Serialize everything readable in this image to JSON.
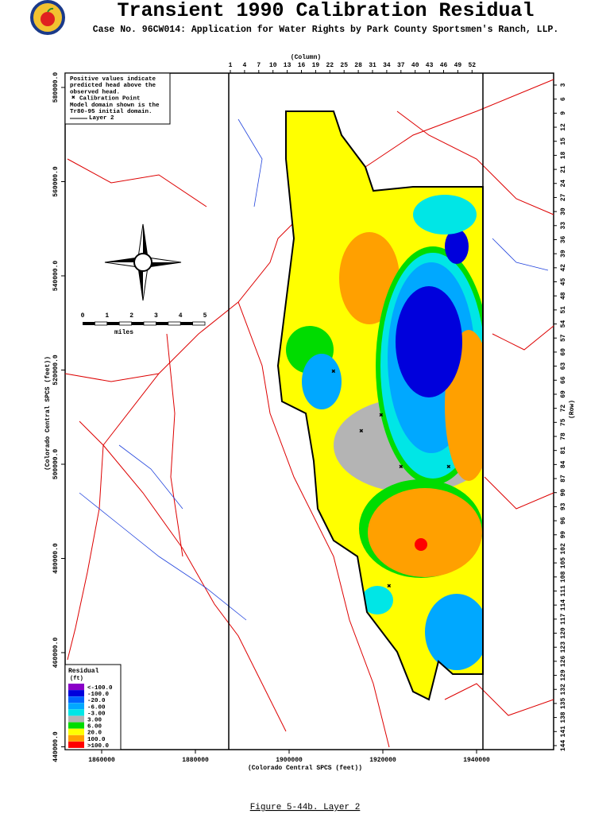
{
  "header": {
    "title": "Transient 1990 Calibration Residual",
    "subtitle": "Case No. 96CW014: Application for Water Rights by Park County Sportsmen's Ranch, LLP."
  },
  "map": {
    "column_label": "(Column)",
    "columns": [
      1,
      4,
      7,
      10,
      13,
      16,
      19,
      22,
      25,
      28,
      31,
      34,
      37,
      40,
      43,
      46,
      49,
      52
    ],
    "row_label": "(Row)",
    "rows": [
      3,
      6,
      9,
      12,
      15,
      18,
      21,
      24,
      27,
      30,
      33,
      36,
      39,
      42,
      45,
      48,
      51,
      54,
      57,
      60,
      63,
      66,
      69,
      72,
      75,
      78,
      81,
      84,
      87,
      90,
      93,
      96,
      99,
      102,
      105,
      108,
      111,
      114,
      117,
      120,
      123,
      126,
      129,
      132,
      135,
      138,
      141,
      144
    ],
    "x_axis_label": "(Colorado Central SPCS (feet))",
    "x_ticks": [
      1860000,
      1880000,
      1900000,
      1920000,
      1940000
    ],
    "y_axis_label": "(Colorado Central SPCS (feet))",
    "y_ticks": [
      "580000.0",
      "560000.0",
      "540000.0",
      "520000.0",
      "500000.0",
      "480000.0",
      "460000.0",
      "440000.0"
    ],
    "note": [
      "Positive values indicate",
      "predicted head above the",
      "observed head.",
      "Calibration Point",
      "Model domain shown is the",
      "Tr80-95 initial domain.",
      "Layer 2"
    ],
    "scale_bar": {
      "ticks": [
        "0",
        "1",
        "2",
        "3",
        "4",
        "5"
      ],
      "unit": "miles"
    },
    "legend": {
      "title": "Residual",
      "unit": "(ft)",
      "items": [
        {
          "label": "<-100.0",
          "color": "#8a00c8"
        },
        {
          "label": "-100.0",
          "color": "#0000dc"
        },
        {
          "label": "-20.0",
          "color": "#0064ff"
        },
        {
          "label": "-6.00",
          "color": "#00a8ff"
        },
        {
          "label": "-3.00",
          "color": "#00e6e6"
        },
        {
          "label": "3.00",
          "color": "#b4b4b4"
        },
        {
          "label": "6.00",
          "color": "#00dc00"
        },
        {
          "label": "20.0",
          "color": "#ffff00"
        },
        {
          "label": "100.0",
          "color": "#ffa000"
        },
        {
          "label": ">100.0",
          "color": "#ff0000"
        }
      ]
    }
  },
  "footer": {
    "caption": "Figure 5-44b.  Layer 2"
  }
}
